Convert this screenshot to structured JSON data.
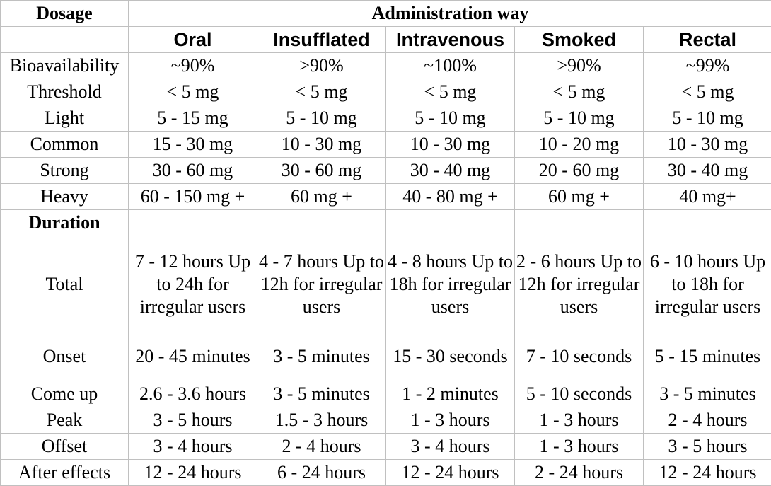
{
  "table": {
    "header_left": "Dosage",
    "header_group": "Administration way",
    "routes": [
      "Oral",
      "Insufflated",
      "Intravenous",
      "Smoked",
      "Rectal"
    ],
    "dosage_rows": [
      {
        "label": "Bioavailability",
        "values": [
          "~90%",
          ">90%",
          "~100%",
          ">90%",
          "~99%"
        ]
      },
      {
        "label": "Threshold",
        "values": [
          "< 5 mg",
          "< 5 mg",
          "< 5 mg",
          "< 5 mg",
          "< 5 mg"
        ]
      },
      {
        "label": "Light",
        "values": [
          "5 - 15 mg",
          "5 - 10 mg",
          "5 - 10 mg",
          "5 - 10 mg",
          "5 - 10 mg"
        ]
      },
      {
        "label": "Common",
        "values": [
          "15 - 30 mg",
          "10 - 30 mg",
          "10 - 30 mg",
          "10 - 20 mg",
          "10 - 30 mg"
        ]
      },
      {
        "label": "Strong",
        "values": [
          "30 - 60 mg",
          "30 - 60 mg",
          "30 - 40 mg",
          "20 - 60 mg",
          "30 - 40 mg"
        ]
      },
      {
        "label": "Heavy",
        "values": [
          "60 - 150 mg +",
          "60 mg +",
          "40 - 80 mg +",
          "60 mg +",
          "40 mg+"
        ]
      }
    ],
    "duration_label": "Duration",
    "duration_rows": [
      {
        "label": "Total",
        "values": [
          "7 - 12 hours Up to 24h for irregular users",
          "4 - 7 hours Up to 12h for irregular users",
          "4 - 8 hours Up to 18h for irregular users",
          "2 - 6 hours Up to 12h for irregular users",
          "6 - 10 hours Up to 18h for irregular users"
        ]
      },
      {
        "label": "Onset",
        "values": [
          "20 - 45 minutes",
          "3 - 5 minutes",
          "15 - 30 seconds",
          "7 - 10 seconds",
          "5 - 15 minutes"
        ]
      },
      {
        "label": "Come up",
        "values": [
          "2.6 - 3.6 hours",
          "3 - 5 minutes",
          "1 - 2 minutes",
          "5 - 10 seconds",
          "3 - 5 minutes"
        ]
      },
      {
        "label": "Peak",
        "values": [
          "3 - 5 hours",
          "1.5 - 3 hours",
          "1 - 3 hours",
          "1 - 3 hours",
          "2 - 4 hours"
        ]
      },
      {
        "label": "Offset",
        "values": [
          "3 - 4 hours",
          "2 - 4 hours",
          "3 - 4 hours",
          "1 - 3 hours",
          "3 - 5 hours"
        ]
      },
      {
        "label": "After effects",
        "values": [
          "12 - 24 hours",
          "6 - 24 hours",
          "12 - 24 hours",
          "2 - 24 hours",
          "12 - 24 hours"
        ]
      }
    ]
  }
}
